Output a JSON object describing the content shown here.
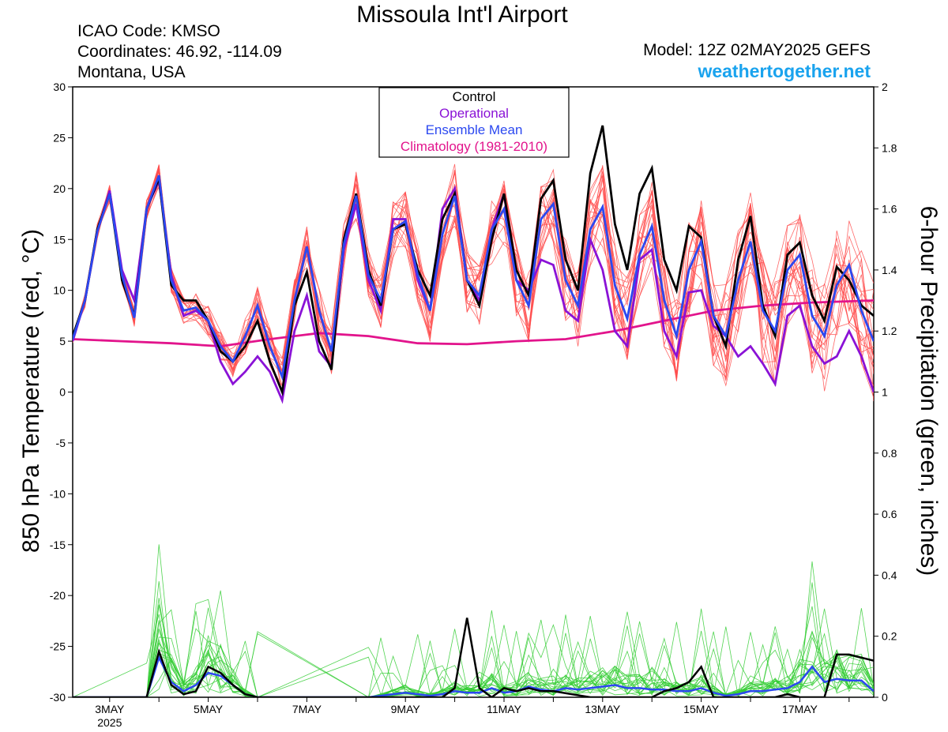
{
  "header": {
    "title": "Missoula Int'l Airport",
    "icao": "ICAO Code: KMSO",
    "coords": "Coordinates: 46.92, -114.09",
    "region": "Montana, USA",
    "model": "Model: 12Z 02MAY2025 GEFS",
    "site": "weathertogether.net"
  },
  "chart_data": {
    "type": "line",
    "ylabel_left": "850 hPa Temperature (red, °C)",
    "ylabel_right": "6-hour Precipitation (green, inches)",
    "x_axis": {
      "range_hours": [
        0,
        390
      ],
      "tick_labels": [
        "3MAY",
        "5MAY",
        "7MAY",
        "9MAY",
        "11MAY",
        "13MAY",
        "15MAY",
        "17MAY"
      ],
      "year_label": "2025"
    },
    "ylim_left": [
      -30,
      30
    ],
    "yticks_left": [
      30,
      25,
      20,
      15,
      10,
      5,
      0,
      -5,
      -10,
      -15,
      -20,
      -25,
      -30
    ],
    "ylim_right": [
      0,
      2
    ],
    "yticks_right": [
      "2",
      "1.8",
      "1.6",
      "1.4",
      "1.2",
      "1",
      "0.8",
      "0.6",
      "0.4",
      "0.2",
      "0"
    ],
    "legend": {
      "placement": "top-center",
      "entries": [
        {
          "label": "Control",
          "color": "#000000"
        },
        {
          "label": "Operational",
          "color": "#8a12d6"
        },
        {
          "label": "Ensemble Mean",
          "color": "#2b48f0"
        },
        {
          "label": "Climatology (1981-2010)",
          "color": "#e2148c"
        }
      ]
    },
    "colors": {
      "control": "#000000",
      "operational": "#8a12d6",
      "mean": "#2b48f0",
      "climatology": "#e2148c",
      "temp_members": "#ff4d4d",
      "precip_members": "#33cc33"
    },
    "series_temp": {
      "control": [
        [
          0,
          5.5
        ],
        [
          6,
          9
        ],
        [
          12,
          16
        ],
        [
          18,
          19.5
        ],
        [
          24,
          11
        ],
        [
          30,
          7.5
        ],
        [
          36,
          18
        ],
        [
          42,
          21
        ],
        [
          48,
          10.5
        ],
        [
          54,
          9
        ],
        [
          60,
          9
        ],
        [
          66,
          7
        ],
        [
          72,
          4
        ],
        [
          78,
          3
        ],
        [
          84,
          4.5
        ],
        [
          90,
          7
        ],
        [
          96,
          3
        ],
        [
          102,
          0
        ],
        [
          108,
          8.5
        ],
        [
          114,
          11.8
        ],
        [
          120,
          5
        ],
        [
          126,
          2.2
        ],
        [
          132,
          15
        ],
        [
          138,
          19.5
        ],
        [
          144,
          12
        ],
        [
          150,
          8.5
        ],
        [
          156,
          16
        ],
        [
          162,
          16.5
        ],
        [
          168,
          12
        ],
        [
          174,
          9.5
        ],
        [
          180,
          17
        ],
        [
          186,
          19.5
        ],
        [
          192,
          11
        ],
        [
          198,
          8.5
        ],
        [
          204,
          15
        ],
        [
          210,
          19.5
        ],
        [
          216,
          12
        ],
        [
          222,
          9.5
        ],
        [
          228,
          19
        ],
        [
          234,
          20.8
        ],
        [
          240,
          13
        ],
        [
          246,
          10
        ],
        [
          252,
          21.5
        ],
        [
          258,
          26.2
        ],
        [
          264,
          16.5
        ],
        [
          270,
          12
        ],
        [
          276,
          19.5
        ],
        [
          282,
          22
        ],
        [
          288,
          13
        ],
        [
          294,
          10
        ],
        [
          300,
          16.3
        ],
        [
          306,
          15.2
        ],
        [
          312,
          7.5
        ],
        [
          318,
          4.5
        ],
        [
          324,
          13
        ],
        [
          330,
          17.3
        ],
        [
          336,
          8.5
        ],
        [
          342,
          5.5
        ],
        [
          348,
          13.5
        ],
        [
          354,
          14.7
        ],
        [
          360,
          9.5
        ],
        [
          366,
          7
        ],
        [
          372,
          12.3
        ],
        [
          378,
          11
        ],
        [
          384,
          8.5
        ],
        [
          390,
          7.5
        ]
      ],
      "operational": [
        [
          0,
          5
        ],
        [
          6,
          9
        ],
        [
          12,
          15.8
        ],
        [
          18,
          19.8
        ],
        [
          24,
          12
        ],
        [
          30,
          9
        ],
        [
          36,
          18
        ],
        [
          42,
          20.8
        ],
        [
          48,
          11.5
        ],
        [
          54,
          7.5
        ],
        [
          60,
          8
        ],
        [
          66,
          7
        ],
        [
          72,
          3
        ],
        [
          78,
          0.8
        ],
        [
          84,
          2
        ],
        [
          90,
          3.5
        ],
        [
          96,
          2
        ],
        [
          102,
          -0.8
        ],
        [
          108,
          6
        ],
        [
          114,
          9.5
        ],
        [
          120,
          4
        ],
        [
          126,
          2.5
        ],
        [
          132,
          14
        ],
        [
          138,
          18.5
        ],
        [
          144,
          11
        ],
        [
          150,
          8
        ],
        [
          156,
          17
        ],
        [
          162,
          17
        ],
        [
          168,
          11
        ],
        [
          174,
          8
        ],
        [
          180,
          18
        ],
        [
          186,
          20
        ],
        [
          192,
          11
        ],
        [
          198,
          9
        ],
        [
          204,
          16
        ],
        [
          210,
          19.5
        ],
        [
          216,
          11
        ],
        [
          222,
          10
        ],
        [
          228,
          13
        ],
        [
          234,
          12.5
        ],
        [
          240,
          8
        ],
        [
          246,
          7
        ],
        [
          252,
          15
        ],
        [
          258,
          12
        ],
        [
          264,
          6
        ],
        [
          270,
          4.5
        ],
        [
          276,
          13
        ],
        [
          282,
          14
        ],
        [
          288,
          6
        ],
        [
          294,
          3.5
        ],
        [
          300,
          9.8
        ],
        [
          306,
          10
        ],
        [
          312,
          6.5
        ],
        [
          318,
          5.5
        ],
        [
          324,
          3.5
        ],
        [
          330,
          4.5
        ],
        [
          336,
          2.8
        ],
        [
          342,
          0.8
        ],
        [
          348,
          7.5
        ],
        [
          354,
          8.5
        ],
        [
          360,
          4.5
        ],
        [
          366,
          2.8
        ],
        [
          372,
          3.5
        ],
        [
          378,
          6
        ],
        [
          384,
          3.5
        ],
        [
          390,
          0
        ]
      ],
      "mean": [
        [
          0,
          5.2
        ],
        [
          6,
          9
        ],
        [
          12,
          15.8
        ],
        [
          18,
          19.5
        ],
        [
          24,
          11.5
        ],
        [
          30,
          7.3
        ],
        [
          36,
          18
        ],
        [
          42,
          21.3
        ],
        [
          48,
          11
        ],
        [
          54,
          8
        ],
        [
          60,
          8.3
        ],
        [
          66,
          7
        ],
        [
          72,
          4.5
        ],
        [
          78,
          3
        ],
        [
          84,
          5.5
        ],
        [
          90,
          8.5
        ],
        [
          96,
          4.5
        ],
        [
          102,
          1.5
        ],
        [
          108,
          9
        ],
        [
          114,
          14.3
        ],
        [
          120,
          8
        ],
        [
          126,
          4
        ],
        [
          132,
          14.5
        ],
        [
          138,
          19.3
        ],
        [
          144,
          11.5
        ],
        [
          150,
          9
        ],
        [
          156,
          16
        ],
        [
          162,
          16.8
        ],
        [
          168,
          11.5
        ],
        [
          174,
          8
        ],
        [
          180,
          15.5
        ],
        [
          186,
          19.3
        ],
        [
          192,
          11
        ],
        [
          198,
          9.5
        ],
        [
          204,
          16
        ],
        [
          210,
          18
        ],
        [
          216,
          11
        ],
        [
          222,
          8.5
        ],
        [
          228,
          17
        ],
        [
          234,
          18.5
        ],
        [
          240,
          11
        ],
        [
          246,
          8.5
        ],
        [
          252,
          16
        ],
        [
          258,
          18.2
        ],
        [
          264,
          10.5
        ],
        [
          270,
          7.2
        ],
        [
          276,
          13.5
        ],
        [
          282,
          16.3
        ],
        [
          288,
          9
        ],
        [
          294,
          5.5
        ],
        [
          300,
          12
        ],
        [
          306,
          14.8
        ],
        [
          312,
          7.5
        ],
        [
          318,
          5.5
        ],
        [
          324,
          11
        ],
        [
          330,
          14.8
        ],
        [
          336,
          8
        ],
        [
          342,
          6
        ],
        [
          348,
          12
        ],
        [
          354,
          13.5
        ],
        [
          360,
          7.5
        ],
        [
          366,
          5.5
        ],
        [
          372,
          10.5
        ],
        [
          378,
          12.5
        ],
        [
          384,
          8
        ],
        [
          390,
          5
        ]
      ],
      "climatology": [
        [
          0,
          5.2
        ],
        [
          24,
          5
        ],
        [
          48,
          4.8
        ],
        [
          72,
          4.5
        ],
        [
          96,
          5.2
        ],
        [
          120,
          5.8
        ],
        [
          144,
          5.5
        ],
        [
          168,
          4.8
        ],
        [
          192,
          4.7
        ],
        [
          216,
          5
        ],
        [
          240,
          5.2
        ],
        [
          264,
          6
        ],
        [
          288,
          7
        ],
        [
          312,
          8
        ],
        [
          336,
          8.5
        ],
        [
          360,
          8.8
        ],
        [
          390,
          9
        ]
      ]
    },
    "series_precip": {
      "control": [
        [
          0,
          0
        ],
        [
          30,
          0
        ],
        [
          36,
          0
        ],
        [
          42,
          0.15
        ],
        [
          48,
          0.04
        ],
        [
          54,
          0.01
        ],
        [
          60,
          0.02
        ],
        [
          66,
          0.1
        ],
        [
          72,
          0.08
        ],
        [
          78,
          0.04
        ],
        [
          84,
          0.01
        ],
        [
          90,
          0
        ],
        [
          120,
          0
        ],
        [
          150,
          0
        ],
        [
          180,
          0
        ],
        [
          186,
          0.03
        ],
        [
          192,
          0.26
        ],
        [
          198,
          0.03
        ],
        [
          204,
          0
        ],
        [
          210,
          0.03
        ],
        [
          216,
          0.02
        ],
        [
          222,
          0.03
        ],
        [
          228,
          0.02
        ],
        [
          234,
          0.02
        ],
        [
          252,
          0
        ],
        [
          282,
          0
        ],
        [
          288,
          0.02
        ],
        [
          294,
          0.03
        ],
        [
          300,
          0.05
        ],
        [
          306,
          0.1
        ],
        [
          312,
          0
        ],
        [
          342,
          0
        ],
        [
          348,
          0.01
        ],
        [
          354,
          0
        ],
        [
          366,
          0
        ],
        [
          372,
          0.14
        ],
        [
          378,
          0.14
        ],
        [
          384,
          0.13
        ],
        [
          390,
          0.12
        ]
      ],
      "mean": [
        [
          0,
          0
        ],
        [
          36,
          0
        ],
        [
          42,
          0.13
        ],
        [
          48,
          0.05
        ],
        [
          54,
          0.02
        ],
        [
          60,
          0.04
        ],
        [
          66,
          0.08
        ],
        [
          72,
          0.07
        ],
        [
          78,
          0.04
        ],
        [
          84,
          0.01
        ],
        [
          90,
          0
        ],
        [
          144,
          0
        ],
        [
          150,
          0.005
        ],
        [
          156,
          0.01
        ],
        [
          162,
          0.015
        ],
        [
          168,
          0.01
        ],
        [
          174,
          0.005
        ],
        [
          180,
          0.01
        ],
        [
          186,
          0.02
        ],
        [
          192,
          0.015
        ],
        [
          198,
          0.015
        ],
        [
          204,
          0.03
        ],
        [
          210,
          0.015
        ],
        [
          216,
          0.02
        ],
        [
          222,
          0.035
        ],
        [
          228,
          0.025
        ],
        [
          234,
          0.02
        ],
        [
          240,
          0.03
        ],
        [
          246,
          0.025
        ],
        [
          252,
          0.03
        ],
        [
          258,
          0.035
        ],
        [
          264,
          0.04
        ],
        [
          270,
          0.03
        ],
        [
          276,
          0.03
        ],
        [
          282,
          0.025
        ],
        [
          288,
          0.025
        ],
        [
          294,
          0.02
        ],
        [
          300,
          0.02
        ],
        [
          306,
          0.03
        ],
        [
          312,
          0.015
        ],
        [
          318,
          0.005
        ],
        [
          324,
          0.01
        ],
        [
          330,
          0.02
        ],
        [
          336,
          0.02
        ],
        [
          342,
          0.025
        ],
        [
          348,
          0.03
        ],
        [
          354,
          0.05
        ],
        [
          360,
          0.1
        ],
        [
          366,
          0.05
        ],
        [
          372,
          0.06
        ],
        [
          378,
          0.055
        ],
        [
          384,
          0.055
        ],
        [
          390,
          0.02
        ]
      ]
    }
  }
}
